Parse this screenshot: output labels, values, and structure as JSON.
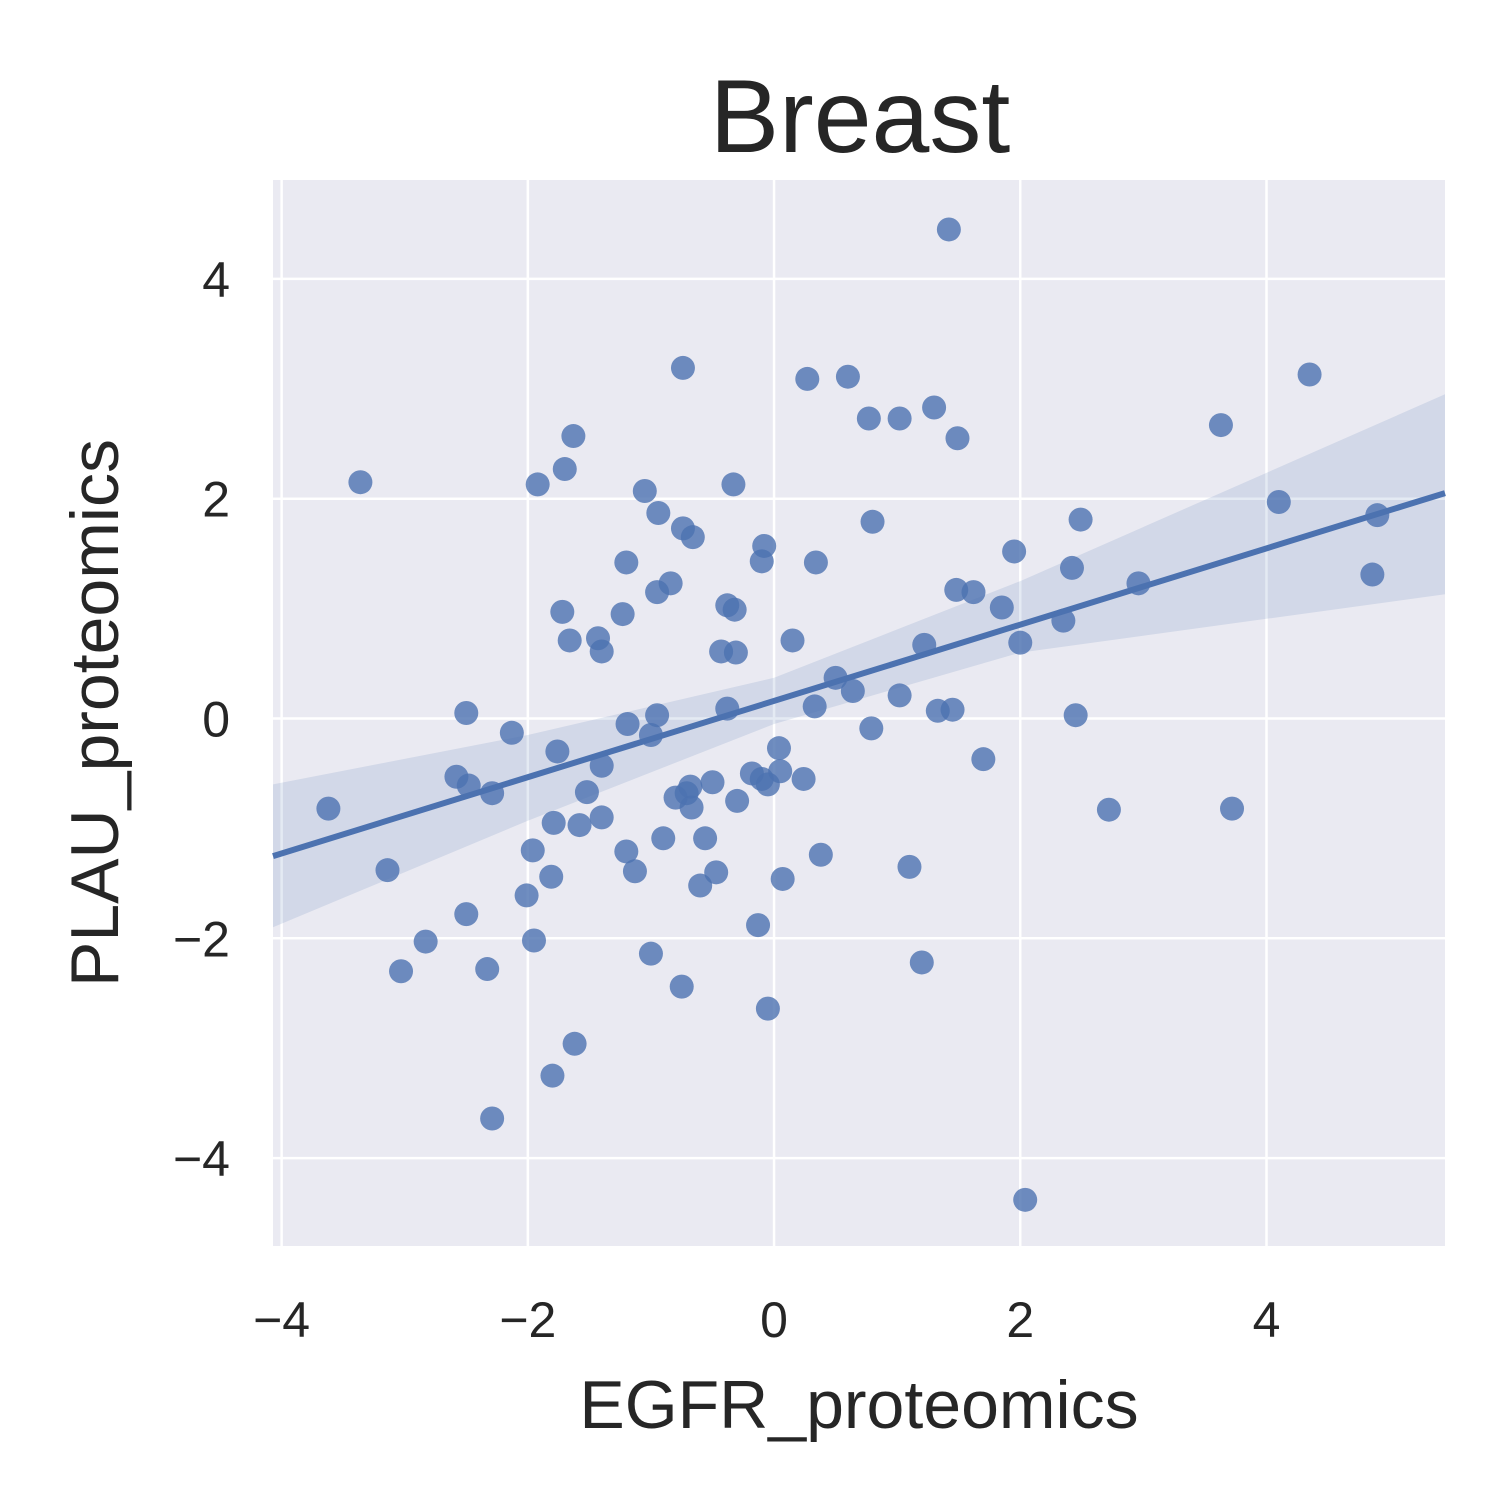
{
  "chart_data": {
    "type": "scatter",
    "title": "Breast",
    "xlabel": "EGFR_proteomics",
    "ylabel": "PLAU_proteomics",
    "xlim": [
      -4.07,
      5.45
    ],
    "ylim": [
      -4.8,
      4.9
    ],
    "xticks": [
      -4,
      -2,
      0,
      2,
      4
    ],
    "yticks": [
      -4,
      -2,
      0,
      2,
      4
    ],
    "xtick_labels": [
      "−4",
      "−2",
      "0",
      "2",
      "4"
    ],
    "ytick_labels": [
      "−4",
      "−2",
      "0",
      "2",
      "4"
    ],
    "grid": true,
    "background_color": "#eaeaf2",
    "point_color": "#4c72b0",
    "regression": {
      "slope": 0.347,
      "intercept": 0.16,
      "ci_band": [
        {
          "x": -4.07,
          "lower": -1.9,
          "upper": -0.6
        },
        {
          "x": -2.0,
          "lower": -0.93,
          "upper": -0.15
        },
        {
          "x": 0.0,
          "lower": -0.05,
          "upper": 0.37
        },
        {
          "x": 2.0,
          "lower": 0.6,
          "upper": 1.25
        },
        {
          "x": 5.45,
          "lower": 1.13,
          "upper": 2.95
        }
      ]
    },
    "points": [
      {
        "x": 1.42,
        "y": 4.45
      },
      {
        "x": -0.74,
        "y": 3.19
      },
      {
        "x": 0.27,
        "y": 3.09
      },
      {
        "x": 0.6,
        "y": 3.11
      },
      {
        "x": 4.35,
        "y": 3.13
      },
      {
        "x": 0.77,
        "y": 2.73
      },
      {
        "x": 1.02,
        "y": 2.73
      },
      {
        "x": 1.3,
        "y": 2.83
      },
      {
        "x": 1.49,
        "y": 2.55
      },
      {
        "x": 3.63,
        "y": 2.67
      },
      {
        "x": -1.63,
        "y": 2.57
      },
      {
        "x": -1.7,
        "y": 2.27
      },
      {
        "x": -3.36,
        "y": 2.15
      },
      {
        "x": -1.92,
        "y": 2.13
      },
      {
        "x": -0.33,
        "y": 2.13
      },
      {
        "x": -1.05,
        "y": 2.07
      },
      {
        "x": -0.94,
        "y": 1.87
      },
      {
        "x": 4.1,
        "y": 1.97
      },
      {
        "x": 4.9,
        "y": 1.85
      },
      {
        "x": 0.8,
        "y": 1.79
      },
      {
        "x": 2.49,
        "y": 1.81
      },
      {
        "x": -0.74,
        "y": 1.73
      },
      {
        "x": -0.66,
        "y": 1.65
      },
      {
        "x": -0.08,
        "y": 1.57
      },
      {
        "x": -0.1,
        "y": 1.43
      },
      {
        "x": 0.34,
        "y": 1.42
      },
      {
        "x": -1.2,
        "y": 1.42
      },
      {
        "x": 1.95,
        "y": 1.52
      },
      {
        "x": 2.42,
        "y": 1.37
      },
      {
        "x": 4.86,
        "y": 1.31
      },
      {
        "x": 2.96,
        "y": 1.23
      },
      {
        "x": -0.84,
        "y": 1.23
      },
      {
        "x": -0.95,
        "y": 1.15
      },
      {
        "x": 1.48,
        "y": 1.17
      },
      {
        "x": 1.62,
        "y": 1.15
      },
      {
        "x": -1.72,
        "y": 0.97
      },
      {
        "x": -1.23,
        "y": 0.95
      },
      {
        "x": -0.38,
        "y": 1.03
      },
      {
        "x": -0.32,
        "y": 0.99
      },
      {
        "x": 1.85,
        "y": 1.01
      },
      {
        "x": 2.35,
        "y": 0.89
      },
      {
        "x": -1.66,
        "y": 0.71
      },
      {
        "x": -1.43,
        "y": 0.73
      },
      {
        "x": -1.4,
        "y": 0.61
      },
      {
        "x": 0.15,
        "y": 0.71
      },
      {
        "x": -0.43,
        "y": 0.61
      },
      {
        "x": -0.31,
        "y": 0.6
      },
      {
        "x": 1.22,
        "y": 0.67
      },
      {
        "x": 2.0,
        "y": 0.69
      },
      {
        "x": 0.5,
        "y": 0.37
      },
      {
        "x": 0.64,
        "y": 0.25
      },
      {
        "x": 1.02,
        "y": 0.21
      },
      {
        "x": 0.33,
        "y": 0.11
      },
      {
        "x": -0.38,
        "y": 0.09
      },
      {
        "x": 1.33,
        "y": 0.07
      },
      {
        "x": 1.45,
        "y": 0.08
      },
      {
        "x": 2.45,
        "y": 0.03
      },
      {
        "x": -2.5,
        "y": 0.05
      },
      {
        "x": -0.95,
        "y": 0.03
      },
      {
        "x": -1.19,
        "y": -0.05
      },
      {
        "x": -1.0,
        "y": -0.15
      },
      {
        "x": 0.79,
        "y": -0.09
      },
      {
        "x": -2.13,
        "y": -0.13
      },
      {
        "x": 0.04,
        "y": -0.27
      },
      {
        "x": -1.76,
        "y": -0.3
      },
      {
        "x": 1.7,
        "y": -0.37
      },
      {
        "x": -1.4,
        "y": -0.43
      },
      {
        "x": -2.58,
        "y": -0.53
      },
      {
        "x": -0.18,
        "y": -0.5
      },
      {
        "x": -0.1,
        "y": -0.55
      },
      {
        "x": -0.05,
        "y": -0.6
      },
      {
        "x": 0.05,
        "y": -0.48
      },
      {
        "x": 0.24,
        "y": -0.55
      },
      {
        "x": -0.5,
        "y": -0.58
      },
      {
        "x": -0.68,
        "y": -0.62
      },
      {
        "x": -2.48,
        "y": -0.61
      },
      {
        "x": -2.29,
        "y": -0.68
      },
      {
        "x": -0.71,
        "y": -0.68
      },
      {
        "x": -0.8,
        "y": -0.72
      },
      {
        "x": -0.67,
        "y": -0.81
      },
      {
        "x": -1.52,
        "y": -0.67
      },
      {
        "x": -0.3,
        "y": -0.75
      },
      {
        "x": -3.62,
        "y": -0.82
      },
      {
        "x": 2.72,
        "y": -0.83
      },
      {
        "x": 3.72,
        "y": -0.82
      },
      {
        "x": -1.4,
        "y": -0.9
      },
      {
        "x": -1.79,
        "y": -0.95
      },
      {
        "x": -1.58,
        "y": -0.97
      },
      {
        "x": -0.9,
        "y": -1.09
      },
      {
        "x": -0.56,
        "y": -1.09
      },
      {
        "x": -1.96,
        "y": -1.2
      },
      {
        "x": -1.2,
        "y": -1.21
      },
      {
        "x": 0.38,
        "y": -1.24
      },
      {
        "x": -1.13,
        "y": -1.39
      },
      {
        "x": -3.14,
        "y": -1.38
      },
      {
        "x": -1.81,
        "y": -1.44
      },
      {
        "x": -0.47,
        "y": -1.4
      },
      {
        "x": -0.6,
        "y": -1.52
      },
      {
        "x": 0.07,
        "y": -1.46
      },
      {
        "x": 1.1,
        "y": -1.35
      },
      {
        "x": -2.01,
        "y": -1.61
      },
      {
        "x": -2.5,
        "y": -1.78
      },
      {
        "x": -0.13,
        "y": -1.88
      },
      {
        "x": -2.83,
        "y": -2.03
      },
      {
        "x": -1.95,
        "y": -2.02
      },
      {
        "x": -1.0,
        "y": -2.14
      },
      {
        "x": 1.2,
        "y": -2.22
      },
      {
        "x": -3.03,
        "y": -2.3
      },
      {
        "x": -2.33,
        "y": -2.28
      },
      {
        "x": -0.75,
        "y": -2.44
      },
      {
        "x": -0.05,
        "y": -2.64
      },
      {
        "x": -1.62,
        "y": -2.96
      },
      {
        "x": -1.8,
        "y": -3.25
      },
      {
        "x": -2.29,
        "y": -3.64
      },
      {
        "x": 2.04,
        "y": -4.38
      }
    ]
  }
}
